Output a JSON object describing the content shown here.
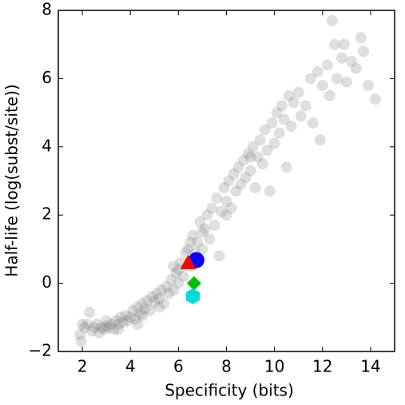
{
  "chart_data": {
    "type": "scatter",
    "xlabel": "Specificity (bits)",
    "ylabel": "Half-life (log(subst/site))",
    "xlim": [
      1,
      15
    ],
    "ylim": [
      -2,
      8
    ],
    "xticks": [
      2,
      4,
      6,
      8,
      10,
      12,
      14
    ],
    "yticks": [
      {
        "value": -2,
        "label": "−2"
      },
      0,
      2,
      4,
      6,
      8
    ],
    "series": [
      {
        "color": "#808080",
        "alpha": 0.25,
        "marker": "o",
        "x": [
          1.9,
          1.95,
          2.1,
          2.2,
          2.3,
          2.4,
          2.5,
          2.6,
          2.7,
          2.8,
          2.9,
          3.0,
          3.1,
          3.2,
          3.3,
          3.4,
          3.5,
          3.6,
          3.7,
          3.8,
          3.9,
          4.0,
          4.1,
          4.2,
          4.3,
          4.4,
          4.5,
          4.6,
          4.7,
          4.8,
          4.9,
          5.0,
          5.1,
          5.2,
          5.3,
          5.4,
          5.5,
          5.6,
          5.7,
          5.8,
          5.9,
          6.0,
          6.1,
          6.2,
          6.3,
          6.4,
          6.5,
          6.6,
          6.7,
          6.8,
          6.9,
          7.0,
          7.1,
          7.2,
          7.3,
          7.4,
          7.5,
          7.6,
          7.7,
          7.8,
          7.9,
          8.0,
          8.1,
          8.2,
          8.3,
          8.4,
          8.5,
          8.6,
          8.7,
          8.8,
          8.9,
          9.0,
          9.1,
          9.2,
          9.3,
          9.4,
          9.5,
          9.6,
          9.7,
          9.8,
          9.9,
          10.0,
          10.1,
          10.2,
          10.3,
          10.4,
          10.5,
          10.6,
          10.7,
          10.8,
          11.0,
          11.1,
          11.3,
          11.5,
          11.6,
          11.8,
          12.0,
          12.2,
          12.3,
          12.4,
          12.5,
          12.6,
          12.8,
          13.0,
          13.2,
          13.4,
          13.6,
          13.7,
          14.2,
          12.9,
          13.9,
          11.9,
          2.0,
          3.5,
          4.5,
          5.2,
          6.0,
          7.0,
          8.0,
          9.0,
          6.5,
          5.8,
          4.3,
          3.0
        ],
        "y": [
          -1.5,
          -1.7,
          -1.3,
          -1.2,
          -0.85,
          -1.4,
          -1.3,
          -1.2,
          -1.45,
          -1.3,
          -1.35,
          -1.25,
          -1.3,
          -1.2,
          -1.35,
          -1.1,
          -1.2,
          -1.0,
          -1.15,
          -0.95,
          -1.1,
          -1.0,
          -0.8,
          -1.05,
          -0.7,
          -0.9,
          -0.6,
          -0.75,
          -0.5,
          -0.8,
          -0.4,
          -0.55,
          -0.3,
          -0.45,
          -0.2,
          -0.6,
          -0.1,
          -0.3,
          0.1,
          -0.2,
          0.3,
          0.0,
          0.6,
          0.2,
          0.9,
          1.0,
          0.5,
          1.4,
          0.9,
          1.2,
          1.8,
          1.0,
          1.6,
          2.0,
          1.3,
          2.2,
          1.7,
          2.5,
          0.8,
          2.1,
          2.8,
          2.4,
          3.0,
          2.2,
          3.2,
          2.7,
          3.4,
          2.9,
          3.6,
          3.1,
          3.8,
          3.3,
          4.0,
          2.8,
          3.7,
          4.2,
          3.5,
          4.5,
          3.9,
          2.7,
          4.7,
          4.1,
          5.0,
          4.4,
          5.2,
          4.8,
          3.4,
          5.5,
          4.6,
          5.3,
          5.6,
          4.9,
          5.2,
          6.0,
          4.7,
          6.2,
          5.8,
          6.4,
          5.5,
          7.7,
          7.0,
          6.0,
          6.6,
          5.9,
          6.5,
          6.3,
          7.2,
          6.8,
          5.4,
          7.0,
          5.8,
          4.2,
          -1.2,
          -1.35,
          -0.95,
          -0.7,
          0.4,
          1.5,
          2.0,
          3.7,
          1.2,
          0.5,
          -1.2,
          -1.1
        ]
      },
      {
        "color": "#0000ff",
        "alpha": 1,
        "marker": "o",
        "x": [
          6.75
        ],
        "y": [
          0.68
        ]
      },
      {
        "color": "#ff0000",
        "alpha": 1,
        "marker": "^",
        "x": [
          6.4
        ],
        "y": [
          0.58
        ]
      },
      {
        "color": "#00bf00",
        "alpha": 1,
        "marker": "D",
        "x": [
          6.65
        ],
        "y": [
          0.0
        ]
      },
      {
        "color": "#00dddd",
        "alpha": 1,
        "marker": "h",
        "x": [
          6.6
        ],
        "y": [
          -0.38
        ]
      }
    ]
  }
}
